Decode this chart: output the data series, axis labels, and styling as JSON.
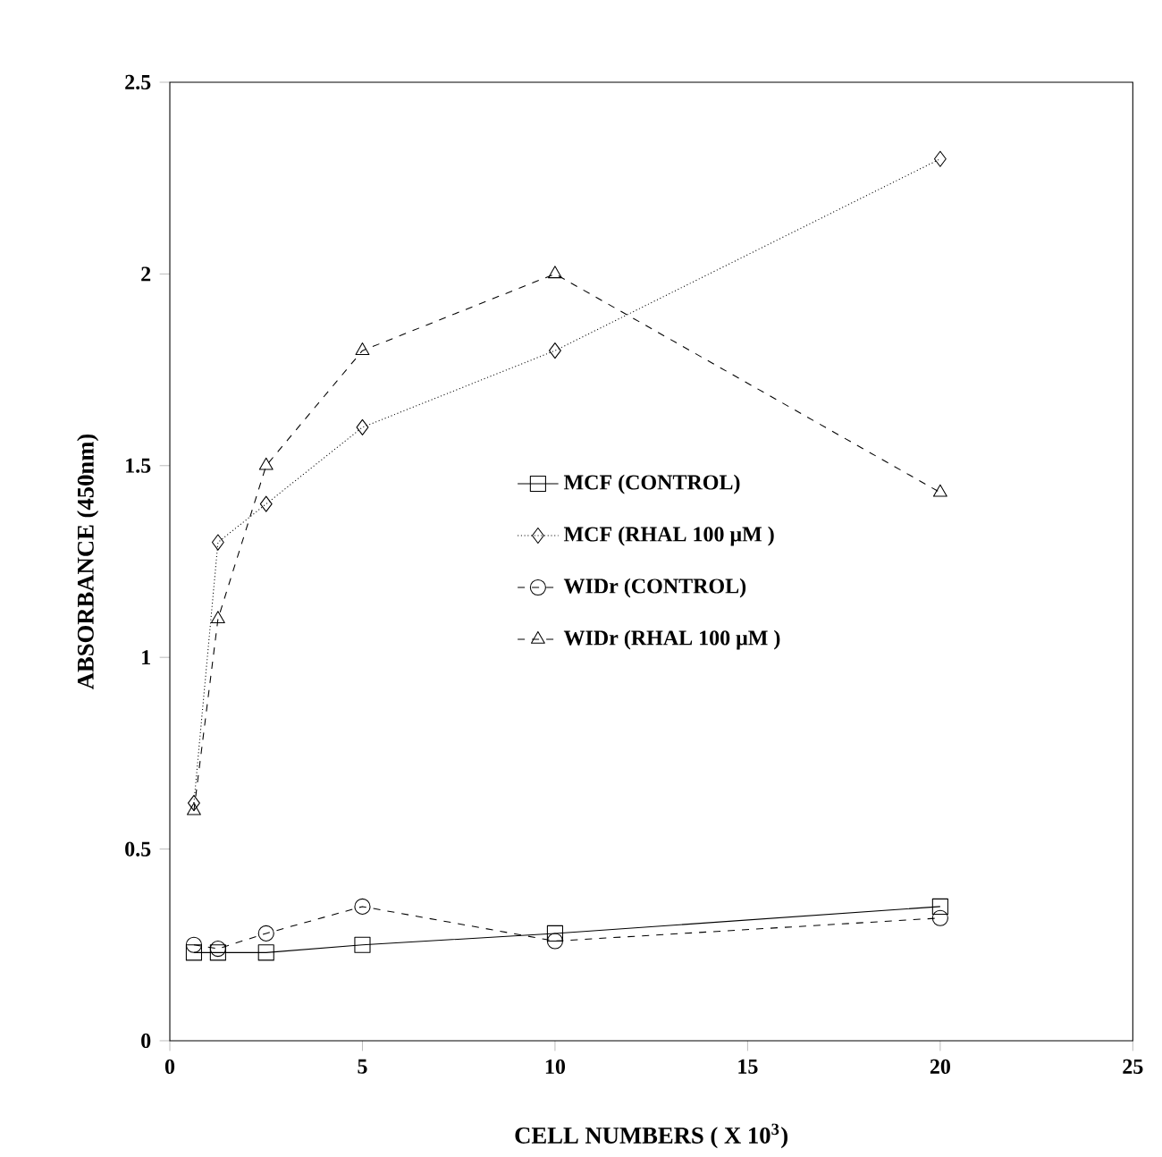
{
  "chart_data": {
    "type": "line",
    "xlabel": "CELL NUMBERS ( X 10$^{3}$)",
    "ylabel": "ABSORBANCE  (450nm)",
    "x": [
      0.625,
      1.25,
      2.5,
      5,
      10,
      20
    ],
    "series": [
      {
        "name": "MCF  (CONTROL)",
        "color": "#000000",
        "marker": "square",
        "line_style": "solid",
        "values": [
          0.23,
          0.23,
          0.23,
          0.25,
          0.28,
          0.35
        ]
      },
      {
        "name": "MCF  (RHAL  100  μM )",
        "color": "#000000",
        "marker": "diamond",
        "line_style": "dotted",
        "values": [
          0.62,
          1.3,
          1.4,
          1.6,
          1.8,
          2.3
        ]
      },
      {
        "name": "WIDr  (CONTROL)",
        "color": "#000000",
        "marker": "circle",
        "line_style": "dashed",
        "values": [
          0.25,
          0.24,
          0.28,
          0.35,
          0.26,
          0.32
        ]
      },
      {
        "name": "WIDr  (RHAL  100  μM )",
        "color": "#000000",
        "marker": "triangle",
        "line_style": "dashed",
        "values": [
          0.6,
          1.1,
          1.5,
          1.8,
          2.0,
          1.43
        ]
      }
    ],
    "xlim": [
      0,
      25
    ],
    "xticks": [
      0,
      5,
      10,
      15,
      20,
      25
    ],
    "ylim": [
      0,
      2.5
    ],
    "yticks": [
      0,
      0.5,
      1,
      1.5,
      2,
      2.5
    ],
    "grid": false,
    "legend": "center"
  }
}
